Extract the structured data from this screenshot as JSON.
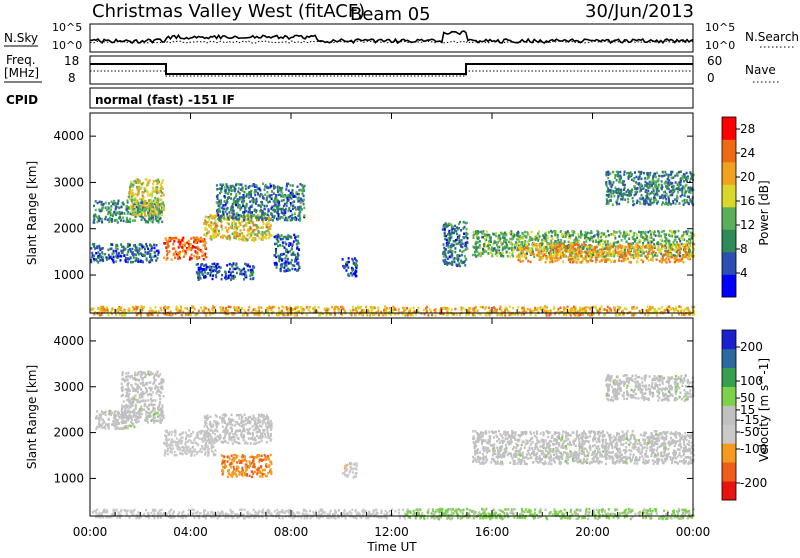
{
  "header": {
    "title": "Christmas Valley West (fitACF)",
    "beam": "Beam 05",
    "date": "30/Jun/2013"
  },
  "strip_labels": {
    "nsky": "N.Sky",
    "nsearch": "N.Search",
    "freq_line1": "Freq.",
    "freq_line2": "[MHz]",
    "nave": "Nave",
    "cpid": "CPID",
    "cpid_value": "normal (fast) -151 IF",
    "noise_ticks_left": [
      "10^5",
      "10^0"
    ],
    "noise_ticks_right": [
      "10^5",
      "10^0"
    ],
    "freq_ticks": [
      "18",
      "8"
    ],
    "nave_ticks": [
      "60",
      "0"
    ]
  },
  "xaxis": {
    "label": "Time UT",
    "ticks": [
      "00:00",
      "04:00",
      "08:00",
      "12:00",
      "16:00",
      "20:00",
      "00:00"
    ]
  },
  "colors": {
    "power_scale": [
      "#0000ff",
      "#2c4fb4",
      "#2e8a56",
      "#58b05a",
      "#d9d72a",
      "#f0a21e",
      "#f06a14",
      "#ff0000"
    ],
    "velocity_scale": [
      "#e8120f",
      "#f05d18",
      "#f59a1e",
      "#c9c9c9",
      "#c0c0c0",
      "#7bd14a",
      "#35a04e",
      "#2a6a9c",
      "#1a1fd0"
    ]
  },
  "chart_data": [
    {
      "type": "heatmap",
      "title": "",
      "panel": "power",
      "xlabel": "Time UT",
      "ylabel": "Slant Range [km]",
      "xlim_hours": [
        0,
        24
      ],
      "ylim": [
        180,
        4500
      ],
      "yticks": [
        1000,
        2000,
        3000,
        4000
      ],
      "colorbar_label": "Power [dB]",
      "colorbar_ticks": [
        4,
        8,
        12,
        16,
        20,
        24,
        28
      ],
      "colorbar_range": [
        0,
        30
      ],
      "regions": [
        {
          "t_start": 0.1,
          "t_end": 2.9,
          "r_center": 2400,
          "r_width": 300,
          "value": 10
        },
        {
          "t_start": 1.5,
          "t_end": 2.9,
          "r_center": 2700,
          "r_width": 500,
          "value": 17
        },
        {
          "t_start": 0.0,
          "t_end": 2.7,
          "r_center": 1500,
          "r_width": 250,
          "value": 7
        },
        {
          "t_start": 2.9,
          "t_end": 4.6,
          "r_center": 1600,
          "r_width": 300,
          "value": 24
        },
        {
          "t_start": 4.5,
          "t_end": 7.2,
          "r_center": 2050,
          "r_width": 350,
          "value": 18
        },
        {
          "t_start": 5.0,
          "t_end": 8.5,
          "r_center": 2600,
          "r_width": 500,
          "value": 8
        },
        {
          "t_start": 4.2,
          "t_end": 6.5,
          "r_center": 1100,
          "r_width": 220,
          "value": 6
        },
        {
          "t_start": 7.3,
          "t_end": 8.3,
          "r_center": 1500,
          "r_width": 500,
          "value": 6
        },
        {
          "t_start": 10.0,
          "t_end": 10.6,
          "r_center": 1200,
          "r_width": 250,
          "value": 5
        },
        {
          "t_start": 14.0,
          "t_end": 15.0,
          "r_center": 1700,
          "r_width": 600,
          "value": 8
        },
        {
          "t_start": 15.2,
          "t_end": 24.0,
          "r_center": 1700,
          "r_width": 350,
          "value": 12
        },
        {
          "t_start": 17.0,
          "t_end": 24.0,
          "r_center": 1500,
          "r_width": 250,
          "value": 21
        },
        {
          "t_start": 20.5,
          "t_end": 24.0,
          "r_center": 2900,
          "r_width": 450,
          "value": 9
        },
        {
          "t_start": 0.0,
          "t_end": 24.0,
          "r_center": 250,
          "r_width": 120,
          "value": 20
        }
      ]
    },
    {
      "type": "heatmap",
      "title": "",
      "panel": "velocity",
      "xlabel": "Time UT",
      "ylabel": "Slant Range [km]",
      "xlim_hours": [
        0,
        24
      ],
      "ylim": [
        180,
        4500
      ],
      "yticks": [
        1000,
        2000,
        3000,
        4000
      ],
      "colorbar_label": "Velocity [m s^-1]",
      "colorbar_ticks": [
        -200,
        -100,
        -50,
        -15,
        15,
        50,
        100,
        200
      ],
      "colorbar_range": [
        -250,
        250
      ],
      "regions": [
        {
          "t_start": 1.2,
          "t_end": 2.9,
          "r_center": 2800,
          "r_width": 700,
          "value": 0
        },
        {
          "t_start": 0.2,
          "t_end": 1.8,
          "r_center": 2300,
          "r_width": 250,
          "value": 0
        },
        {
          "t_start": 2.9,
          "t_end": 5.0,
          "r_center": 1800,
          "r_width": 350,
          "value": -50
        },
        {
          "t_start": 4.5,
          "t_end": 7.2,
          "r_center": 2100,
          "r_width": 400,
          "value": -15
        },
        {
          "t_start": 5.2,
          "t_end": 7.2,
          "r_center": 1300,
          "r_width": 300,
          "value": -130
        },
        {
          "t_start": 10.0,
          "t_end": 10.6,
          "r_center": 1200,
          "r_width": 200,
          "value": -60
        },
        {
          "t_start": 15.2,
          "t_end": 24.0,
          "r_center": 1700,
          "r_width": 450,
          "value": 0
        },
        {
          "t_start": 20.5,
          "t_end": 24.0,
          "r_center": 3000,
          "r_width": 350,
          "value": 0
        },
        {
          "t_start": 0.0,
          "t_end": 12.5,
          "r_center": 250,
          "r_width": 120,
          "value": -50
        },
        {
          "t_start": 12.5,
          "t_end": 24.0,
          "r_center": 250,
          "r_width": 140,
          "value": 40
        }
      ]
    }
  ]
}
